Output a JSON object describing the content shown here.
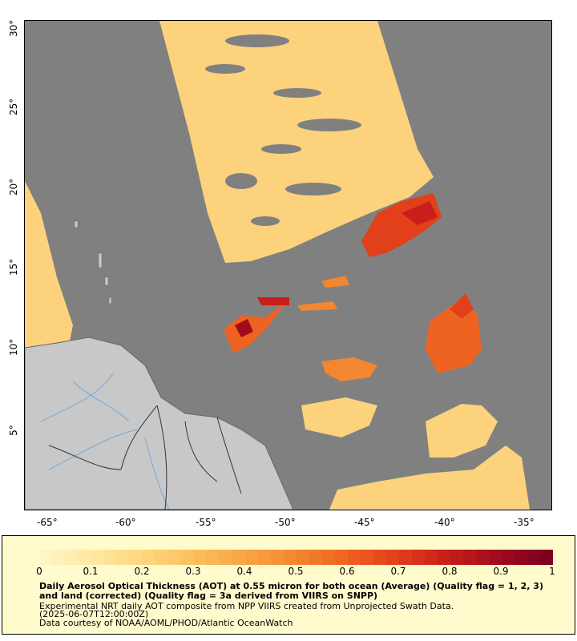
{
  "map": {
    "lon_ticks": [
      "-65°",
      "-60°",
      "-55°",
      "-50°",
      "-45°",
      "-40°",
      "-35°"
    ],
    "lat_ticks": [
      "5°",
      "10°",
      "15°",
      "20°",
      "25°",
      "30°"
    ],
    "colors": {
      "no_data": "#808080",
      "land": "#c8c8c8",
      "river": "#6fa8dc",
      "border": "#333333"
    }
  },
  "legend": {
    "ticks": [
      "0",
      "0.1",
      "0.2",
      "0.3",
      "0.4",
      "0.5",
      "0.6",
      "0.7",
      "0.8",
      "0.9",
      "1"
    ],
    "colors": [
      "#fff5c4",
      "#ffe7a0",
      "#ffd57c",
      "#fbbf5e",
      "#f9a444",
      "#f4862f",
      "#ef6321",
      "#e23f1b",
      "#c81f1a",
      "#a10c1d",
      "#7d0020"
    ],
    "title": "Daily Aerosol Optical Thickness (AOT) at 0.55 micron for both ocean (Average) (Quality flag = 1, 2, 3) and land (corrected) (Quality flag = 3a derived from VIIRS on SNPP)",
    "line1": "Experimental NRT daily AOT composite from NPP VIIRS created from Unprojected Swath Data.",
    "line2": "(2025-06-07T12:00:00Z)",
    "line3": "Data courtesy of NOAA/AOML/PHOD/Atlantic OceanWatch"
  }
}
